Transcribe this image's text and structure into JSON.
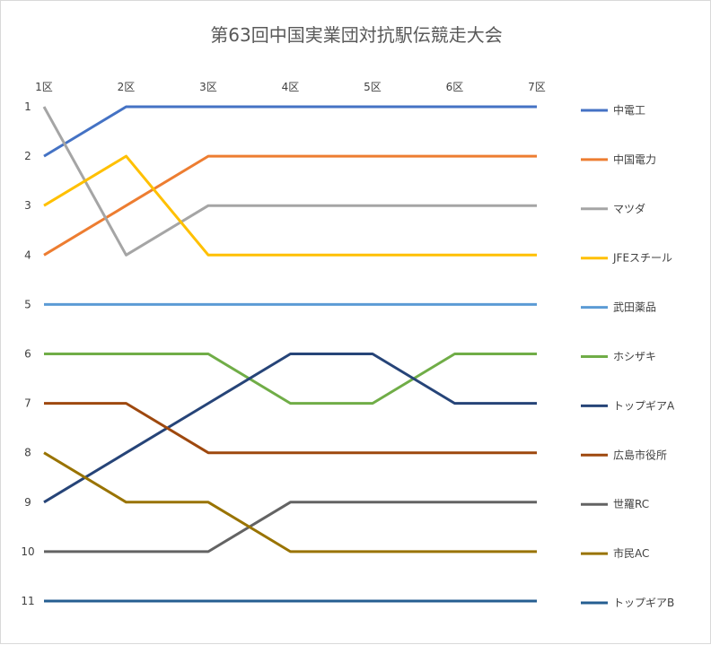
{
  "chart_data": {
    "type": "line",
    "title": "第63回中国実業団対抗駅伝競走大会",
    "categories": [
      "1区",
      "2区",
      "3区",
      "4区",
      "5区",
      "6区",
      "7区"
    ],
    "y_ticks": [
      "1",
      "2",
      "3",
      "4",
      "5",
      "6",
      "7",
      "8",
      "9",
      "10",
      "11"
    ],
    "ylim": [
      1,
      11
    ],
    "y_reversed": true,
    "x_axis_position": "top",
    "grid": false,
    "legend_position": "right",
    "series": [
      {
        "name": "中電工",
        "color": "#4472C4",
        "values": [
          2,
          1,
          1,
          1,
          1,
          1,
          1
        ]
      },
      {
        "name": "中国電力",
        "color": "#ED7D31",
        "values": [
          4,
          3,
          2,
          2,
          2,
          2,
          2
        ]
      },
      {
        "name": "マツダ",
        "color": "#A5A5A5",
        "values": [
          1,
          4,
          3,
          3,
          3,
          3,
          3
        ]
      },
      {
        "name": "JFEスチール",
        "color": "#FFC000",
        "values": [
          3,
          2,
          4,
          4,
          4,
          4,
          4
        ]
      },
      {
        "name": "武田薬品",
        "color": "#5B9BD5",
        "values": [
          5,
          5,
          5,
          5,
          5,
          5,
          5
        ]
      },
      {
        "name": "ホシザキ",
        "color": "#70AD47",
        "values": [
          6,
          6,
          6,
          7,
          7,
          6,
          6
        ]
      },
      {
        "name": "トップギアA",
        "color": "#264478",
        "values": [
          9,
          8,
          7,
          6,
          6,
          7,
          7
        ]
      },
      {
        "name": "広島市役所",
        "color": "#9E480E",
        "values": [
          7,
          7,
          8,
          8,
          8,
          8,
          8
        ]
      },
      {
        "name": "世羅RC",
        "color": "#636363",
        "values": [
          10,
          10,
          10,
          9,
          9,
          9,
          9
        ]
      },
      {
        "name": "市民AC",
        "color": "#997300",
        "values": [
          8,
          9,
          9,
          10,
          10,
          10,
          10
        ]
      },
      {
        "name": "トップギアB",
        "color": "#255E91",
        "values": [
          11,
          11,
          11,
          11,
          11,
          11,
          11
        ]
      }
    ]
  }
}
